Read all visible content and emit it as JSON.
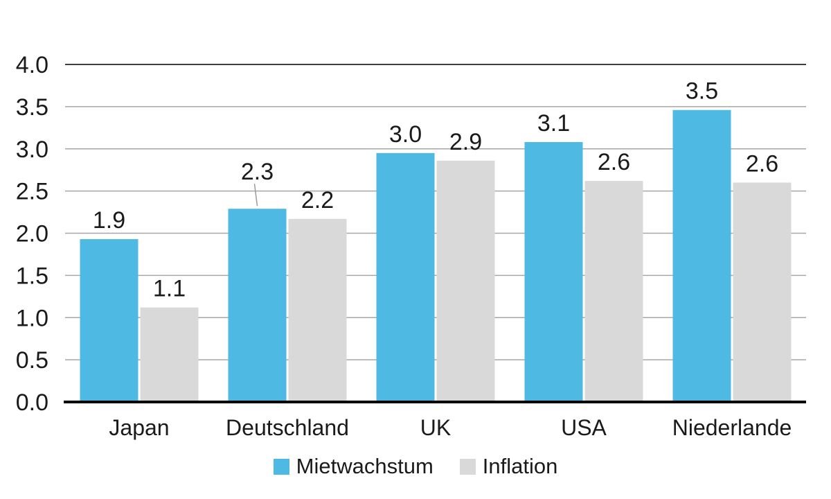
{
  "chart_data": {
    "type": "bar",
    "title": "",
    "xlabel": "",
    "ylabel": "",
    "categories": [
      "Japan",
      "Deutschland",
      "UK",
      "USA",
      "Niederlande"
    ],
    "series": [
      {
        "name": "Mietwachstum",
        "color": "#4EBAE4",
        "values": [
          1.9,
          2.3,
          3.0,
          3.1,
          3.5
        ],
        "values_rendered": [
          1.93,
          2.29,
          2.95,
          3.08,
          3.46
        ]
      },
      {
        "name": "Inflation",
        "color": "#D9D9D9",
        "values": [
          1.1,
          2.2,
          2.9,
          2.6,
          2.6
        ],
        "values_rendered": [
          1.12,
          2.17,
          2.86,
          2.62,
          2.6
        ]
      }
    ],
    "ylim": [
      0,
      4
    ],
    "ytick_step": 0.5,
    "ytick_labels": [
      "0.0",
      "0.5",
      "1.0",
      "1.5",
      "2.0",
      "2.5",
      "3.0",
      "3.5",
      "4.0"
    ],
    "grid": true,
    "legend_position": "bottom",
    "data_labels_shown": true,
    "label_annotations": [
      {
        "series": 0,
        "index": 1,
        "dy": -26,
        "leader_line": true
      }
    ],
    "styles": {
      "background": "#FFFFFF",
      "grid_color": "#A6A6A6",
      "top_grid_color": "#3F3F3F",
      "axis_color": "#000000",
      "text_color": "#1A1A1A",
      "leader_line_color": "#9A9A9A"
    }
  }
}
